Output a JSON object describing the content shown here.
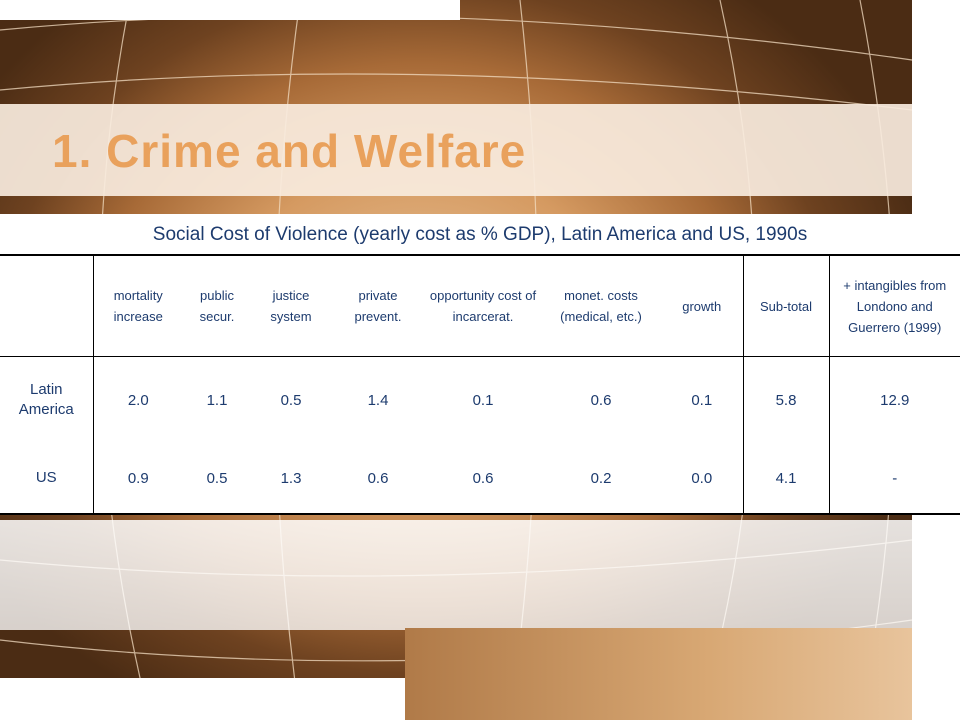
{
  "slide": {
    "title": "1. Crime and Welfare",
    "caption": "Social Cost of Violence (yearly cost as % GDP), Latin America and US, 1990s"
  },
  "table": {
    "headers": [
      "",
      "mortality increase",
      "public secur.",
      "justice system",
      "private prevent.",
      "opportunity cost of incarcerat.",
      "monet. costs (medical, etc.)",
      "growth",
      "Sub-total",
      "+ intangibles from Londono and Guerrero (1999)"
    ],
    "rows": [
      {
        "label": "Latin America",
        "values": [
          "2.0",
          "1.1",
          "0.5",
          "1.4",
          "0.1",
          "0.6",
          "0.1",
          "5.8",
          "12.9"
        ]
      },
      {
        "label": "US",
        "values": [
          "0.9",
          "0.5",
          "1.3",
          "0.6",
          "0.6",
          "0.2",
          "0.0",
          "4.1",
          "-"
        ]
      }
    ]
  },
  "colors": {
    "title": "#e9a15c",
    "text": "#1d3b6e"
  }
}
